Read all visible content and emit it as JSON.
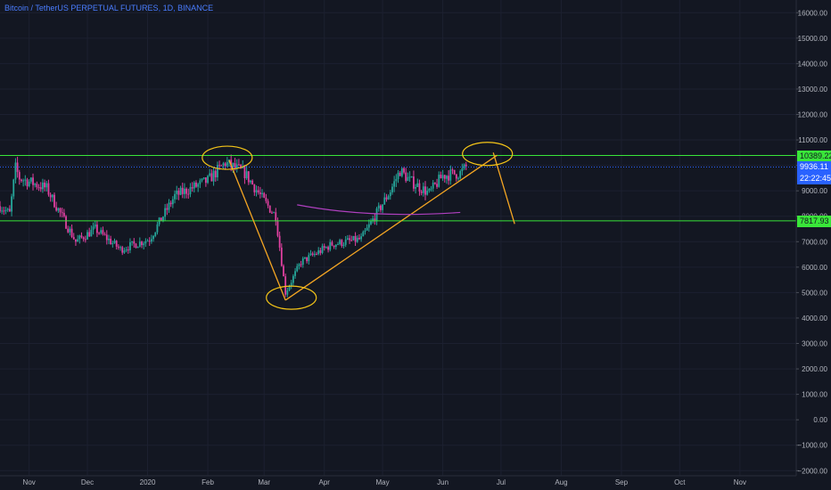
{
  "header": {
    "symbol": "Bitcoin / TetherUS PERPETUAL FUTURES",
    "interval": "1D",
    "exchange": "BINANCE"
  },
  "price_tags": {
    "resistance": "10389.22",
    "last_price": "9936.11",
    "countdown": "22:22:45",
    "support": "7817.93"
  },
  "colors": {
    "background": "#131722",
    "grid": "#1c2030",
    "up": "#26a69a",
    "down": "#e040a0",
    "level_line": "#39e639",
    "trend_line": "#f5a623",
    "curve": "#b040c0",
    "last_price": "#2962ff"
  },
  "chart_data": {
    "type": "candlestick",
    "timeframe": "1D",
    "x_ticks": [
      "Nov",
      "Dec",
      "2020",
      "Feb",
      "Mar",
      "Apr",
      "May",
      "Jun",
      "Jul",
      "Aug",
      "Sep",
      "Oct",
      "Nov"
    ],
    "y_ticks": [
      "16000.00",
      "15000.00",
      "14000.00",
      "13000.00",
      "12000.00",
      "11000.00",
      "10000.00",
      "9000.00",
      "8000.00",
      "7000.00",
      "6000.00",
      "5000.00",
      "4000.00",
      "3000.00",
      "2000.00",
      "1000.00",
      "0.00",
      "−1000.00",
      "−2000.00"
    ],
    "ylim": [
      -2200,
      16500
    ],
    "x_range": [
      "2019-10-17",
      "2020-11-30"
    ],
    "horizontal_levels": [
      10389.22,
      7817.93
    ],
    "last_price": 9936.11,
    "anchors": [
      {
        "date": "2019-10-17",
        "price": 8400
      },
      {
        "date": "2019-10-22",
        "price": 8100
      },
      {
        "date": "2019-10-25",
        "price": 9900
      },
      {
        "date": "2019-10-27",
        "price": 9500
      },
      {
        "date": "2019-11-10",
        "price": 9100
      },
      {
        "date": "2019-11-25",
        "price": 7000
      },
      {
        "date": "2019-12-05",
        "price": 7500
      },
      {
        "date": "2019-12-18",
        "price": 6700
      },
      {
        "date": "2020-01-02",
        "price": 7100
      },
      {
        "date": "2020-01-15",
        "price": 8800
      },
      {
        "date": "2020-02-01",
        "price": 9400
      },
      {
        "date": "2020-02-10",
        "price": 10100
      },
      {
        "date": "2020-02-20",
        "price": 9700
      },
      {
        "date": "2020-03-01",
        "price": 8600
      },
      {
        "date": "2020-03-07",
        "price": 8000
      },
      {
        "date": "2020-03-12",
        "price": 5000
      },
      {
        "date": "2020-03-20",
        "price": 6200
      },
      {
        "date": "2020-04-05",
        "price": 6900
      },
      {
        "date": "2020-04-20",
        "price": 7100
      },
      {
        "date": "2020-05-05",
        "price": 9000
      },
      {
        "date": "2020-05-10",
        "price": 9800
      },
      {
        "date": "2020-05-15",
        "price": 9400
      },
      {
        "date": "2020-05-25",
        "price": 8900
      },
      {
        "date": "2020-06-01",
        "price": 9600
      },
      {
        "date": "2020-06-10",
        "price": 9700
      },
      {
        "date": "2020-06-13",
        "price": 9936
      }
    ],
    "drawings": {
      "trend_lines": [
        {
          "from": {
            "date": "2020-02-12",
            "price": 10200
          },
          "to": {
            "date": "2020-03-12",
            "price": 4700
          }
        },
        {
          "from": {
            "date": "2020-03-12",
            "price": 4700
          },
          "to": {
            "date": "2020-06-29",
            "price": 10400
          }
        },
        {
          "from": {
            "date": "2020-06-27",
            "price": 10500
          },
          "to": {
            "date": "2020-07-08",
            "price": 7700
          }
        }
      ],
      "ellipses": [
        {
          "date": "2020-02-11",
          "price": 10300
        },
        {
          "date": "2020-03-15",
          "price": 4800
        },
        {
          "date": "2020-06-24",
          "price": 10450
        }
      ],
      "curve": [
        {
          "date": "2020-03-18",
          "price": 8450
        },
        {
          "date": "2020-04-25",
          "price": 7900
        },
        {
          "date": "2020-06-10",
          "price": 8150
        }
      ]
    }
  }
}
